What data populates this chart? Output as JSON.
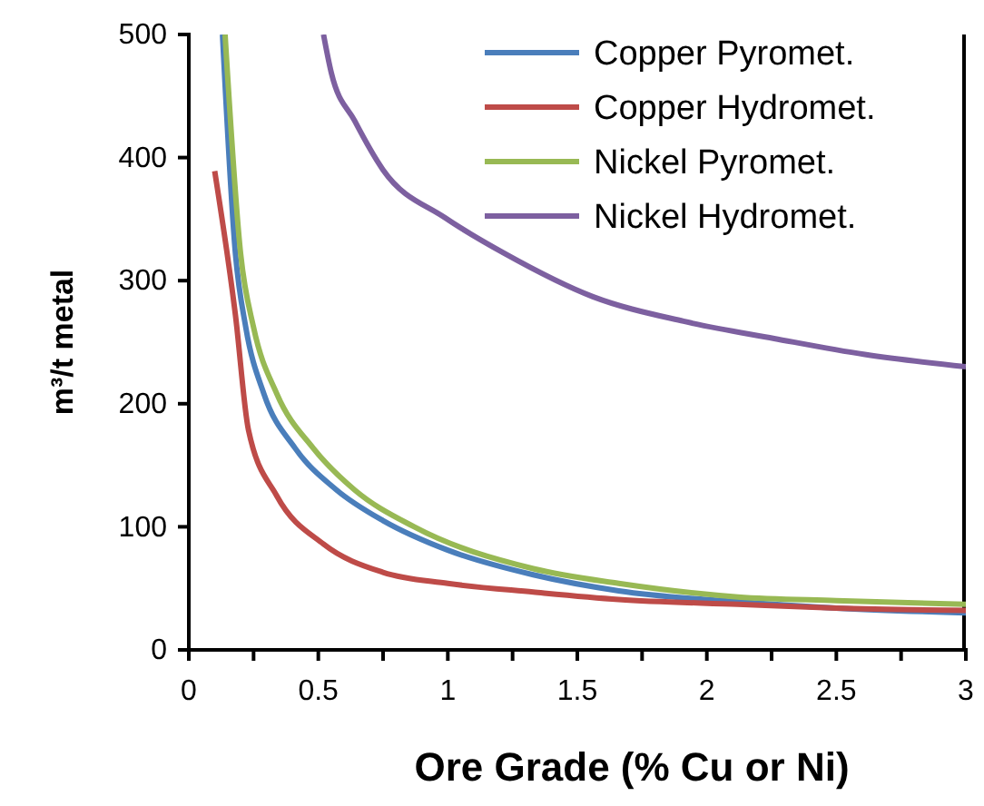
{
  "chart_data": {
    "type": "line",
    "xlabel": "Ore Grade (% Cu or Ni)",
    "ylabel": "m³/t metal",
    "xlim": [
      0,
      3
    ],
    "ylim": [
      0,
      500
    ],
    "xticks": [
      0,
      {
        "value": 0.25,
        "label": null
      },
      0.5,
      {
        "value": 0.75,
        "label": null
      },
      1,
      {
        "value": 1.25,
        "label": null
      },
      1.5,
      {
        "value": 1.75,
        "label": null
      },
      2,
      {
        "value": 2.25,
        "label": null
      },
      2.5,
      {
        "value": 2.75,
        "label": null
      },
      3
    ],
    "yticks": [
      0,
      100,
      200,
      300,
      400,
      500
    ],
    "grid": false,
    "legend": "top right",
    "marker": "none",
    "line_style": "solid",
    "series": [
      {
        "name": "Copper Pyromet.",
        "color": "#4a7ebb",
        "x": [
          0.13,
          0.18,
          0.22,
          0.29,
          0.41,
          0.57,
          0.75,
          1,
          1.33,
          1.66,
          2.12,
          2.5,
          3
        ],
        "values": [
          500,
          322,
          262,
          208,
          164,
          130,
          105,
          81,
          61,
          48,
          39,
          34,
          30
        ]
      },
      {
        "name": "Copper Hydromet.",
        "color": "#be4b48",
        "x": [
          0.1,
          0.18,
          0.23,
          0.34,
          0.52,
          0.75,
          1,
          1.33,
          1.66,
          2.12,
          2.5,
          3
        ],
        "values": [
          389,
          272,
          179,
          125,
          86,
          63,
          54,
          47,
          41,
          37,
          34,
          32
        ]
      },
      {
        "name": "Nickel Pyromet.",
        "color": "#98b954",
        "x": [
          0.14,
          0.2,
          0.25,
          0.34,
          0.48,
          0.64,
          0.87,
          1.33,
          1.66,
          2.12,
          2.5,
          3
        ],
        "values": [
          500,
          322,
          262,
          208,
          164,
          130,
          100,
          66,
          54,
          43,
          40,
          37
        ]
      },
      {
        "name": "Nickel Hydromet.",
        "color": "#7d60a0",
        "x": [
          0.52,
          0.55,
          0.64,
          0.75,
          0.99,
          1.22,
          1.56,
          1.91,
          2.26,
          2.61,
          3
        ],
        "values": [
          500,
          469,
          430,
          390,
          351,
          322,
          287,
          267,
          253,
          240,
          230
        ]
      }
    ]
  }
}
